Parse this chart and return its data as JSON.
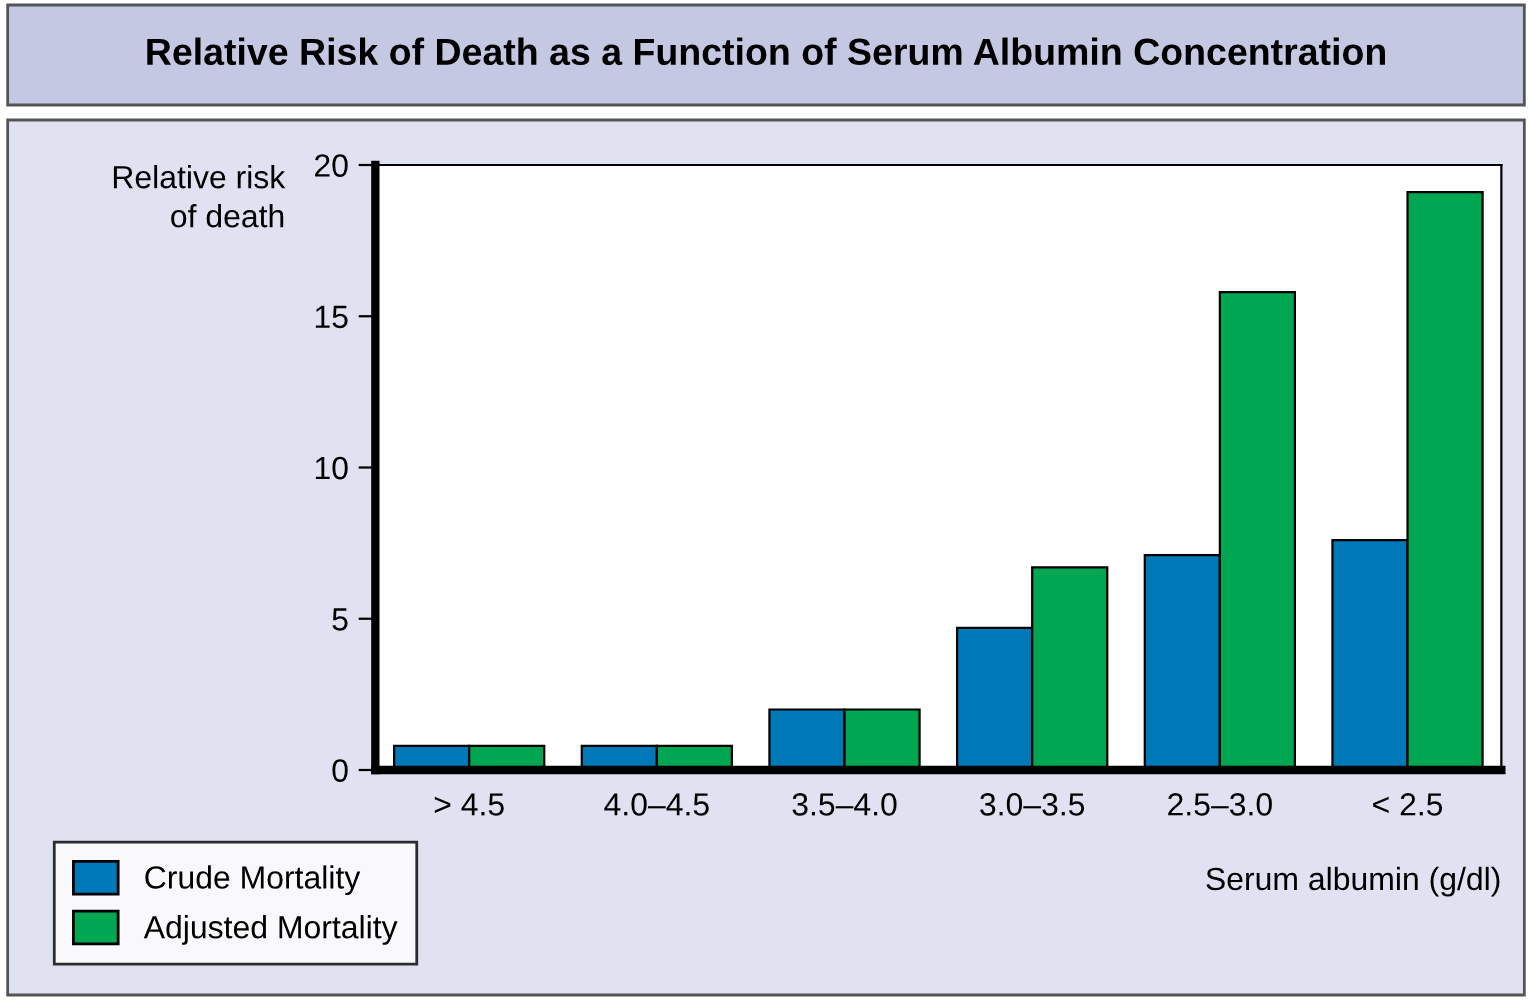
{
  "chart_data": {
    "type": "bar",
    "title": "Relative Risk of Death as a Function of Serum Albumin Concentration",
    "ylabel": "Relative risk\nof death",
    "xlabel": "Serum albumin (g/dl)",
    "categories": [
      "> 4.5",
      "4.0–4.5",
      "3.5–4.0",
      "3.0–3.5",
      "2.5–3.0",
      "< 2.5"
    ],
    "series": [
      {
        "name": "Crude Mortality",
        "color": "#0079b8",
        "values": [
          0.8,
          0.8,
          2.0,
          4.7,
          7.1,
          7.6
        ]
      },
      {
        "name": "Adjusted Mortality",
        "color": "#00a651",
        "values": [
          0.8,
          0.8,
          2.0,
          6.7,
          15.8,
          19.1
        ]
      }
    ],
    "ylim": [
      0,
      20
    ],
    "yticks": [
      0,
      5,
      10,
      15,
      20
    ],
    "grid": false,
    "legend": "bottom left"
  }
}
